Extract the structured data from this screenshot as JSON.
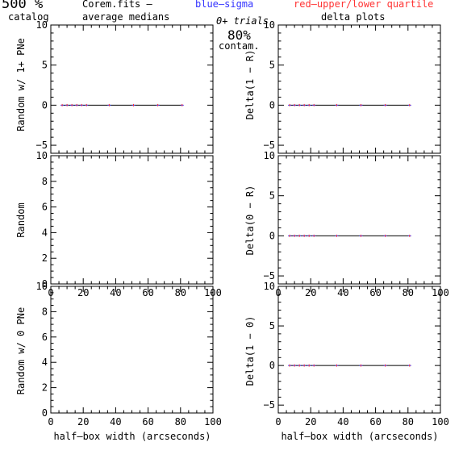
{
  "header": {
    "percent": "500 %",
    "catalog": "catalog",
    "file": "Corem.fits  –",
    "subtitle": "average medians",
    "blue_label": "blue–sigma",
    "red_label": "red–upper/lower quartile",
    "trials": "0+ trials",
    "contam_pct": "80%",
    "contam": "contam.",
    "delta_title": "delta plots"
  },
  "colors": {
    "blue": "#3333ff",
    "red": "#ff3333",
    "axis": "#000000",
    "line": "#000000"
  },
  "chart_data": [
    {
      "type": "line",
      "panel": "top-left",
      "xlabel": "",
      "ylabel": "Random w/ 1+ PNe",
      "xlim": [
        0,
        100
      ],
      "ylim": [
        -6,
        10
      ],
      "xticks": [],
      "yticks": [
        -5,
        0,
        5,
        10
      ],
      "yticklabels": [
        "−5",
        "0",
        "5",
        "10"
      ],
      "series": [
        {
          "x": [
            7,
            10,
            13,
            16,
            19,
            22,
            36,
            51,
            66,
            81
          ],
          "y": [
            0,
            0,
            0,
            0,
            0,
            0,
            0,
            0,
            0,
            0
          ]
        }
      ]
    },
    {
      "type": "line",
      "panel": "top-right",
      "xlabel": "",
      "ylabel": "Delta(1 − R)",
      "xlim": [
        0,
        100
      ],
      "ylim": [
        -6,
        10
      ],
      "xticks": [],
      "yticks": [
        -5,
        0,
        5,
        10
      ],
      "yticklabels": [
        "−5",
        "0",
        "5",
        "10"
      ],
      "series": [
        {
          "x": [
            7,
            10,
            13,
            16,
            19,
            22,
            36,
            51,
            66,
            81
          ],
          "y": [
            0,
            0,
            0,
            0,
            0,
            0,
            0,
            0,
            0,
            0
          ]
        }
      ]
    },
    {
      "type": "line",
      "panel": "middle-left",
      "xlabel": "",
      "ylabel": "Random",
      "xlim": [
        0,
        100
      ],
      "ylim": [
        0,
        10
      ],
      "xticks": [
        0,
        20,
        40,
        60,
        80,
        100
      ],
      "yticks": [
        0,
        2,
        4,
        6,
        8,
        10
      ],
      "yticklabels": [
        "0",
        "2",
        "4",
        "6",
        "8",
        "10"
      ],
      "series": []
    },
    {
      "type": "line",
      "panel": "middle-right",
      "xlabel": "",
      "ylabel": "Delta(0 − R)",
      "xlim": [
        0,
        100
      ],
      "ylim": [
        -6,
        10
      ],
      "xticks": [
        0,
        20,
        40,
        60,
        80,
        100
      ],
      "yticks": [
        -5,
        0,
        5,
        10
      ],
      "yticklabels": [
        "−5",
        "0",
        "5",
        "10"
      ],
      "series": [
        {
          "x": [
            7,
            10,
            13,
            16,
            19,
            22,
            36,
            51,
            66,
            81
          ],
          "y": [
            0,
            0,
            0,
            0,
            0,
            0,
            0,
            0,
            0,
            0
          ]
        }
      ]
    },
    {
      "type": "line",
      "panel": "bottom-left",
      "xlabel": "half–box width (arcseconds)",
      "ylabel": "Random w/ 0 PNe",
      "xlim": [
        0,
        100
      ],
      "ylim": [
        0,
        10
      ],
      "xticks": [
        0,
        20,
        40,
        60,
        80,
        100
      ],
      "yticks": [
        0,
        2,
        4,
        6,
        8,
        10
      ],
      "yticklabels": [
        "0",
        "2",
        "4",
        "6",
        "8",
        "10"
      ],
      "series": []
    },
    {
      "type": "line",
      "panel": "bottom-right",
      "xlabel": "half–box width (arcseconds)",
      "ylabel": "Delta(1 − 0)",
      "xlim": [
        0,
        100
      ],
      "ylim": [
        -6,
        10
      ],
      "xticks": [
        0,
        20,
        40,
        60,
        80,
        100
      ],
      "yticks": [
        -5,
        0,
        5,
        10
      ],
      "yticklabels": [
        "−5",
        "0",
        "5",
        "10"
      ],
      "series": [
        {
          "x": [
            7,
            10,
            13,
            16,
            19,
            22,
            36,
            51,
            66,
            81
          ],
          "y": [
            0,
            0,
            0,
            0,
            0,
            0,
            0,
            0,
            0,
            0
          ]
        }
      ]
    }
  ]
}
